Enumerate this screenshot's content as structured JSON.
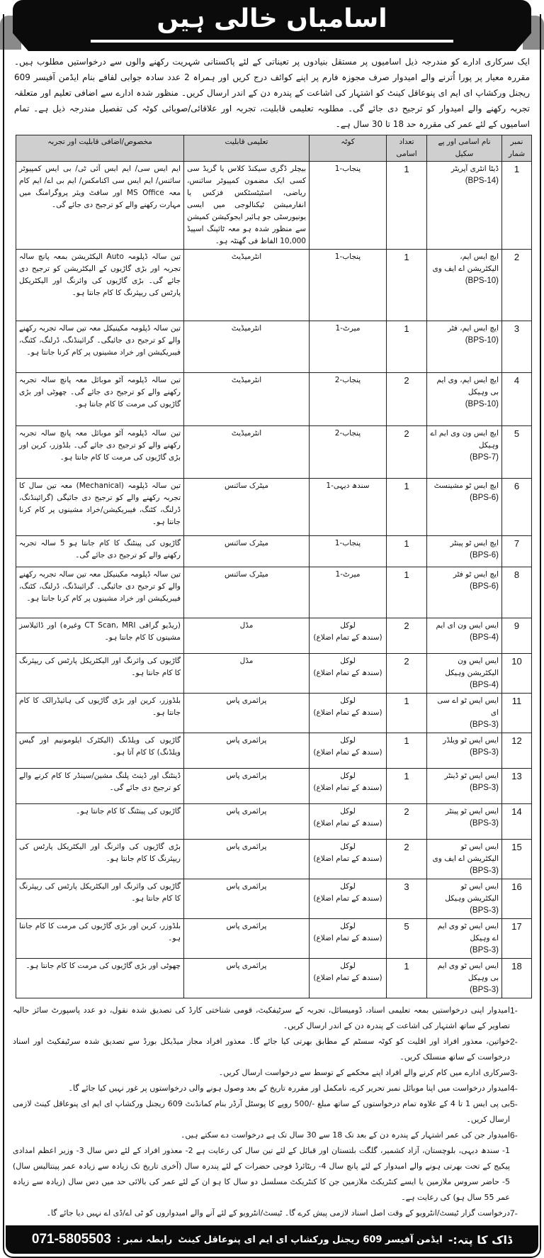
{
  "header": {
    "title": "اسامیاں خالی ہیں"
  },
  "intro": "ایک سرکاری ادارے کو مندرجہ ذیل اسامیوں پر مستقل بنیادوں پر تعیناتی کے لئے پاکستانی شہریت رکھنے والوں سے درخواستیں مطلوب ہیں۔ مقررہ معیار پر پورا اُترنے والے امیدوار صرف مجوزہ فارم پر اپنے کوائف درج کریں اور ہمراہ 2 عدد سادہ جوابی لفافے بنام ایڈمن آفیسر 609 ریجنل ورکشاپ ای ایم ای پنوعاقل کینٹ کو اشتہار کی اشاعت کے پندرہ دن کے اندر ارسال کریں۔ منظور شدہ ادارے سے اضافی تعلیم اور متعلقہ تجربہ رکھنے والے امیدوار کو ترجیح دی جائے گی۔ مطلوبہ تعلیمی قابلیت، تجربہ اور علاقائی/صوبائی کوٹہ کی تفصیل مندرجہ ذیل ہے۔ تمام اسامیوں کے لئے عمر کی مقررہ حد 18 تا 30 سال ہے۔",
  "table": {
    "headers": {
      "num": "نمبر شمار",
      "name": "نام اسامی اور پے سکیل",
      "count": "تعداد اسامی",
      "quota": "کوٹہ",
      "edu": "تعلیمی قابلیت",
      "exp": "مخصوص/اضافی قابلیت اور تجربہ"
    },
    "rows": [
      {
        "num": "1",
        "name": "ڈیٹا انٹری آپریٹر",
        "scale": "(BPS-14)",
        "count": "1",
        "quota": "پنجاب-1",
        "quota_sub": "",
        "edu": "بیچلر ڈگری سیکنڈ کلاس یا گریڈ سی کسی ایک مضمون کمپیوٹر سائنس، ریاضی، اسٹیٹسٹکس فزکس یا انفارمیشن ٹیکنالوجی میں ایسی یونیورسٹی جو ہائیر ایجوکیشن کمیشن سے منظور شدہ ہو معہ ٹائپنگ اسپیڈ 10,000 الفاظ فی گھنٹہ ہو۔",
        "exp": "ایم ایس سی/ ایم ایس آئی ٹی/ بی ایس کمپیوٹر سائنس/ ایم ایس سی اکنامکس/ ایم بی اے/ ایم کام معہ MS Office اور سافٹ ویئر پروگرامنگ میں مہارت رکھنے والے کو ترجیح دی جائے گی۔"
      },
      {
        "num": "2",
        "name": "ایچ ایس ایم، الیکٹریشن اے ایف وی",
        "scale": "(BPS-10)",
        "count": "1",
        "quota": "پنجاب-1",
        "quota_sub": "",
        "edu": "انٹرمیڈیٹ",
        "exp": "تین سالہ ڈپلومہ Auto الیکٹریشن بمعہ پانچ سالہ تجربہ اور بڑی گاڑیوں کے الیکٹریشن کو ترجیح دی جائے گی۔ بڑی گاڑیوں کی وائرنگ اور الیکٹریکل پارٹس کی ریپئرنگ کا کام جانتا ہو۔"
      },
      {
        "num": "3",
        "name": "ایچ ایس ایم، فٹر",
        "scale": "(BPS-10)",
        "count": "1",
        "quota": "میرٹ-1",
        "quota_sub": "",
        "edu": "انٹرمیڈیٹ",
        "exp": "تین سالہ ڈپلومہ مکینیکل معہ تین سالہ تجربہ رکھنے والے کو ترجیح دی جائیگی۔ گرائینڈنگ، ڈرلنگ، کٹنگ، فیبریکیشن اور خراد مشینوں پر کام کرنا جانتا ہو۔"
      },
      {
        "num": "4",
        "name": "ایچ ایس ایم، وی ایم بی وہیکل",
        "scale": "(BPS-10)",
        "count": "2",
        "quota": "پنجاب-2",
        "quota_sub": "",
        "edu": "انٹرمیڈیٹ",
        "exp": "تین سالہ ڈپلومہ آٹو موبائل معہ پانچ سالہ تجربہ رکھنے والے کو ترجیح دی جائے گی۔ چھوٹی اور بڑی گاڑیوں کی مرمت کا کام جانتا ہو۔"
      },
      {
        "num": "5",
        "name": "ایچ ایس ون وی ایم اے وہیکل",
        "scale": "(BPS-7)",
        "count": "2",
        "quota": "پنجاب-2",
        "quota_sub": "",
        "edu": "انٹرمیڈیٹ",
        "exp": "تین سالہ ڈپلومہ آٹو موبائل معہ پانچ سالہ تجربہ رکھنے والے کو ترجیح دی جائے گی۔ بلڈوزر، کرین اور بڑی گاڑیوں کی مرمت کا کام جانتا ہو۔"
      },
      {
        "num": "6",
        "name": "ایچ ایس ٹو مشینسٹ",
        "scale": "(BPS-6)",
        "count": "1",
        "quota": "سندھ دیہی-1",
        "quota_sub": "",
        "edu": "میٹرک سائنس",
        "exp": "تین سالہ ڈپلومہ (Mechanical) معہ تین سال کا تجربہ رکھنے والے کو ترجیح دی جائیگی (گرائینڈنگ، ڈرلنگ، کٹنگ، فیبریکیشن/خراد مشینوں پر کام کرنا جانتا ہو۔"
      },
      {
        "num": "7",
        "name": "ایچ ایس ٹو پینٹر",
        "scale": "(BPS-6)",
        "count": "1",
        "quota": "پنجاب-1",
        "quota_sub": "",
        "edu": "میٹرک سائنس",
        "exp": "گاڑیوں کی پینٹنگ کا کام جانتا ہو 5 سالہ تجربہ رکھنے والے کو ترجیح دی جائے گی۔"
      },
      {
        "num": "8",
        "name": "ایچ ایس ٹو فٹر",
        "scale": "(BPS-6)",
        "count": "1",
        "quota": "میرٹ-1",
        "quota_sub": "",
        "edu": "میٹرک سائنس",
        "exp": "تین سالہ ڈپلومہ مکینیکل معہ تین سالہ تجربہ رکھنے والے کو ترجیح دی جائیگی۔ گرائینڈنگ، ڈرلنگ، کٹنگ، فیبریکیشن اور خراد مشینوں پر کام کرنا جانتا ہو۔"
      },
      {
        "num": "9",
        "name": "ایس ایس ون ای ایم",
        "scale": "(BPS-4)",
        "count": "2",
        "quota": "لوکل",
        "quota_sub": "(سندھ کے تمام اضلاع)",
        "edu": "مڈل",
        "exp": "(ریڈیو گرافی CT Scan, MRI وغیرہ) اور ڈائیلاسز مشینوں کا کام جانتا ہو۔"
      },
      {
        "num": "10",
        "name": "ایس ایس ون الیکٹریشن وہیکل",
        "scale": "(BPS-4)",
        "count": "2",
        "quota": "لوکل",
        "quota_sub": "(سندھ کے تمام اضلاع)",
        "edu": "مڈل",
        "exp": "گاڑیوں کی وائرنگ اور الیکٹریکل پارٹس کی ریپئرنگ کا کام جانتا ہو۔"
      },
      {
        "num": "11",
        "name": "ایس ایس ٹو اے سی ای",
        "scale": "(BPS-3)",
        "count": "1",
        "quota": "لوکل",
        "quota_sub": "(سندھ کے تمام اضلاع)",
        "edu": "پرائمری پاس",
        "exp": "بلڈوزر، کرین اور بڑی گاڑیوں کی ہائیڈرالک کا کام جانتا ہو۔"
      },
      {
        "num": "12",
        "name": "ایس ایس ٹو ویلڈر",
        "scale": "(BPS-3)",
        "count": "1",
        "quota": "لوکل",
        "quota_sub": "(سندھ کے تمام اضلاع)",
        "edu": "پرائمری پاس",
        "exp": "گاڑیوں کی ویلڈنگ (الیکٹرک ایلومونیم اور گیس ویلڈنگ) کا کام آتا ہو۔"
      },
      {
        "num": "13",
        "name": "ایس ایس ٹو ڈینٹر",
        "scale": "(BPS-3)",
        "count": "1",
        "quota": "لوکل",
        "quota_sub": "(سندھ کے تمام اضلاع)",
        "edu": "پرائمری پاس",
        "exp": "ڈینٹنگ اور ڈینٹ پلنگ مشین/سینڈر کا کام کرنے والے کو ترجیح دی جائے گی۔"
      },
      {
        "num": "14",
        "name": "ایس ایس ٹو پینٹر",
        "scale": "(BPS-3)",
        "count": "2",
        "quota": "لوکل",
        "quota_sub": "(سندھ کے تمام اضلاع)",
        "edu": "پرائمری پاس",
        "exp": "گاڑیوں کی پینٹنگ کا کام جانتا ہو۔"
      },
      {
        "num": "15",
        "name": "ایس ایس ٹو الیکٹریشن اے ایف وی",
        "scale": "(BPS-3)",
        "count": "2",
        "quota": "لوکل",
        "quota_sub": "(سندھ کے تمام اضلاع)",
        "edu": "پرائمری پاس",
        "exp": "بڑی گاڑیوں کی وائرنگ اور الیکٹریکل پارٹس کی ریپئرنگ کا کام جانتا ہو۔"
      },
      {
        "num": "16",
        "name": "ایس ایس ٹو الیکٹریشن وہیکل",
        "scale": "(BPS-3)",
        "count": "3",
        "quota": "لوکل",
        "quota_sub": "(سندھ کے تمام اضلاع)",
        "edu": "پرائمری پاس",
        "exp": "گاڑیوں کی وائرنگ اور الیکٹریکل پارٹس کی ریپئرنگ کا کام جانتا ہو۔"
      },
      {
        "num": "17",
        "name": "ایس ایس ٹو وی ایم اے وہیکل",
        "scale": "(BPS-3)",
        "count": "5",
        "quota": "لوکل",
        "quota_sub": "(سندھ کے تمام اضلاع)",
        "edu": "پرائمری پاس",
        "exp": "بلڈوزر، کرین اور بڑی گاڑیوں کی مرمت کا کام جانتا ہو۔"
      },
      {
        "num": "18",
        "name": "ایس ایس ٹو وی ایم بی وہیکل",
        "scale": "(BPS-3)",
        "count": "1",
        "quota": "لوکل",
        "quota_sub": "(سندھ کے تمام اضلاع)",
        "edu": "پرائمری پاس",
        "exp": "چھوٹی اور بڑی گاڑیوں کی مرمت کا کام جانتا ہو۔"
      }
    ]
  },
  "notes": [
    {
      "n": "-1",
      "text": "امیدوار اپنی درخواستیں بمعہ تعلیمی اسناد، ڈومیسائل، تجربہ کے سرٹیفکیٹ، قومی شناختی کارڈ کی تصدیق شدہ نقول، دو عدد پاسپورٹ سائز حالیہ تصاویر کے ساتھ اشتہار کی اشاعت کے پندرہ دن کے اندر ارسال کریں۔",
      "sub": ""
    },
    {
      "n": "-2",
      "text": "خواتین، معذور افراد اور اقلیت کو کوٹہ سسٹم کے مطابق بھرتی کیا جائے گا۔ معذور افراد مجاز میڈیکل بورڈ سے تصدیق شدہ سرٹیفکیٹ اور اسناد درخواست کے ساتھ منسلک کریں۔",
      "sub": ""
    },
    {
      "n": "-3",
      "text": "سرکاری ادارے میں کام کرنے والے افراد اپنے محکمے کے توسط سے درخواست ارسال کریں۔",
      "sub": ""
    },
    {
      "n": "-4",
      "text": "امیدوار درخواست میں اپنا موبائل نمبر تحریر کرے، نامکمل اور مقررہ تاریخ کے بعد وصول ہونے والی درخواستوں پر غور نہیں کیا جائے گا۔",
      "sub": ""
    },
    {
      "n": "-5",
      "text": "بی پی ایس 1 تا 4 کے علاوہ تمام درخواستوں کے ساتھ مبلغ -/500 روپے کا پوسٹل آرڈر بنام کمانڈنٹ 609 ریجنل ورکشاپ ای ایم ای پنوعاقل کینٹ لازمی ارسال کریں۔",
      "sub": ""
    },
    {
      "n": "-6",
      "text": "امیدوار جن کی عمر اشتہار کے پندرہ دن کے بعد تک 18 سے 30 سال تک ہے درخواست دے سکتے ہیں۔",
      "sub": "1- سندھ دیہی، بلوچستان، آزاد کشمیر، گلگت بلتستان اور قبائل کے لئے تین سال کی رعایت ہے 2- معذور افراد کے لئے دس سال 3- وزیر اعظم امدادی پیکیج کے تحت بھرتی ہونے والے امیدوار کے لئے پانچ سال 4- ریٹائرڈ فوجی حضرات کے لئے پندرہ سال (آخری تاریخ تک زیادہ سے زیادہ عمر پینتالیس سال) 5- حاضر سروس ملازمین یا ایسے کنٹریکٹ ملازمین جن کا کنٹریکٹ مسلسل دو سال کا ہو ان کے لئے عمر کی بالائی حد میں دس سال (زیادہ سے زیادہ عمر 55 سال ہو) کی رعایت ہے۔"
    },
    {
      "n": "-7",
      "text": "درخواست گزار ٹیسٹ/انٹرویو کے وقت اصل اسناد لازمی پیش کرے گا۔ ٹیسٹ/انٹرویو کے لئے آنے والے امیدواروں کو ٹی اے/ڈی اے نہیں دیا جائے گا۔",
      "sub": ""
    }
  ],
  "footer": {
    "label": "ڈاک کا پتہ:-",
    "address": "ایڈمن آفیسر 609 ریجنل ورکشاپ ای ایم ای پنوعاقل کینٹ",
    "contact_label": "رابطہ نمبر :",
    "phone": "071-5805503"
  }
}
